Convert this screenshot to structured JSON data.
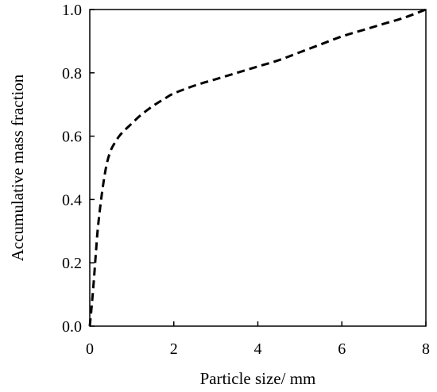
{
  "chart_data": {
    "type": "line",
    "title": "",
    "xlabel": "Particle size/ mm",
    "ylabel": "Accumulative  mass fraction",
    "xlim": [
      0,
      8
    ],
    "ylim": [
      0.0,
      1.0
    ],
    "xticks": [
      0,
      2,
      4,
      6,
      8
    ],
    "xtick_labels": [
      "0",
      "2",
      "4",
      "6",
      "8"
    ],
    "yticks": [
      0.0,
      0.2,
      0.4,
      0.6,
      0.8,
      1.0
    ],
    "ytick_labels": [
      "0.0",
      "0.2",
      "0.4",
      "0.6",
      "0.8",
      "1.0"
    ],
    "grid": false,
    "legend": "none",
    "series": [
      {
        "line_style": "dashed",
        "color": "#000000",
        "x": [
          0.0,
          0.05,
          0.1,
          0.15,
          0.2,
          0.3,
          0.4,
          0.5,
          0.6,
          0.7,
          0.8,
          1.0,
          1.2,
          1.5,
          1.8,
          2.0,
          2.5,
          3.0,
          3.5,
          4.0,
          4.5,
          5.0,
          5.5,
          6.0,
          6.5,
          7.0,
          7.5,
          8.0
        ],
        "y": [
          0.0,
          0.07,
          0.15,
          0.24,
          0.32,
          0.43,
          0.51,
          0.555,
          0.58,
          0.6,
          0.615,
          0.64,
          0.665,
          0.695,
          0.72,
          0.735,
          0.76,
          0.78,
          0.8,
          0.82,
          0.84,
          0.865,
          0.89,
          0.915,
          0.935,
          0.955,
          0.975,
          1.0
        ]
      }
    ]
  }
}
